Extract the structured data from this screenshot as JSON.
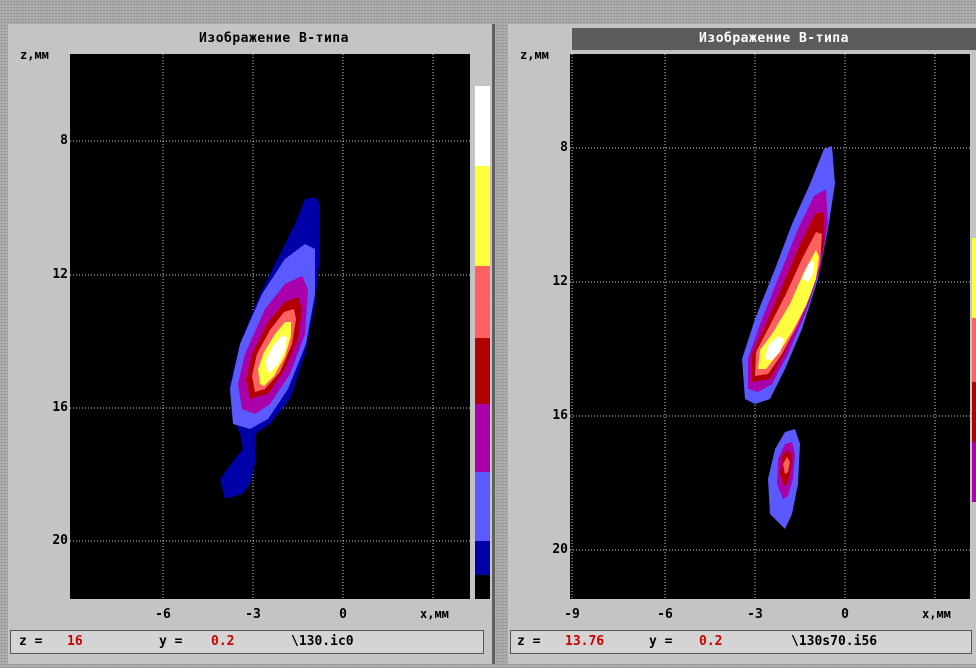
{
  "panels": [
    {
      "title": "Изображение В-типа",
      "y_axis_title": "z,мм",
      "x_axis_title": "x,мм",
      "y_ticks": [
        "8",
        "12",
        "16",
        "20"
      ],
      "x_ticks": [
        "-6",
        "-3",
        "0"
      ],
      "colorbar": [
        "#ffffff",
        "#ffff40",
        "#ff6060",
        "#b00000",
        "#aa00aa",
        "#5a5aff",
        "#0000a8",
        "#000000"
      ],
      "status": {
        "z_label": "z = ",
        "z_value": "16",
        "y_label": "y = ",
        "y_value": "0.2",
        "file": "\\130.ic0"
      }
    },
    {
      "title": "Изображение В-типа",
      "y_axis_title": "z,мм",
      "x_axis_title": "x,мм",
      "y_ticks": [
        "8",
        "12",
        "16",
        "20"
      ],
      "x_ticks": [
        "-9",
        "-6",
        "-3",
        "0"
      ],
      "colorbar": [
        "#ffffff",
        "#ffff40",
        "#ff6060",
        "#b00000",
        "#aa00aa",
        "#5a5aff",
        "#0000a8",
        "#000000"
      ],
      "status": {
        "z_label": "z = ",
        "z_value": "13.76",
        "y_label": "y = ",
        "y_value": "0.2",
        "file": "\\130s70.i56"
      }
    }
  ]
}
